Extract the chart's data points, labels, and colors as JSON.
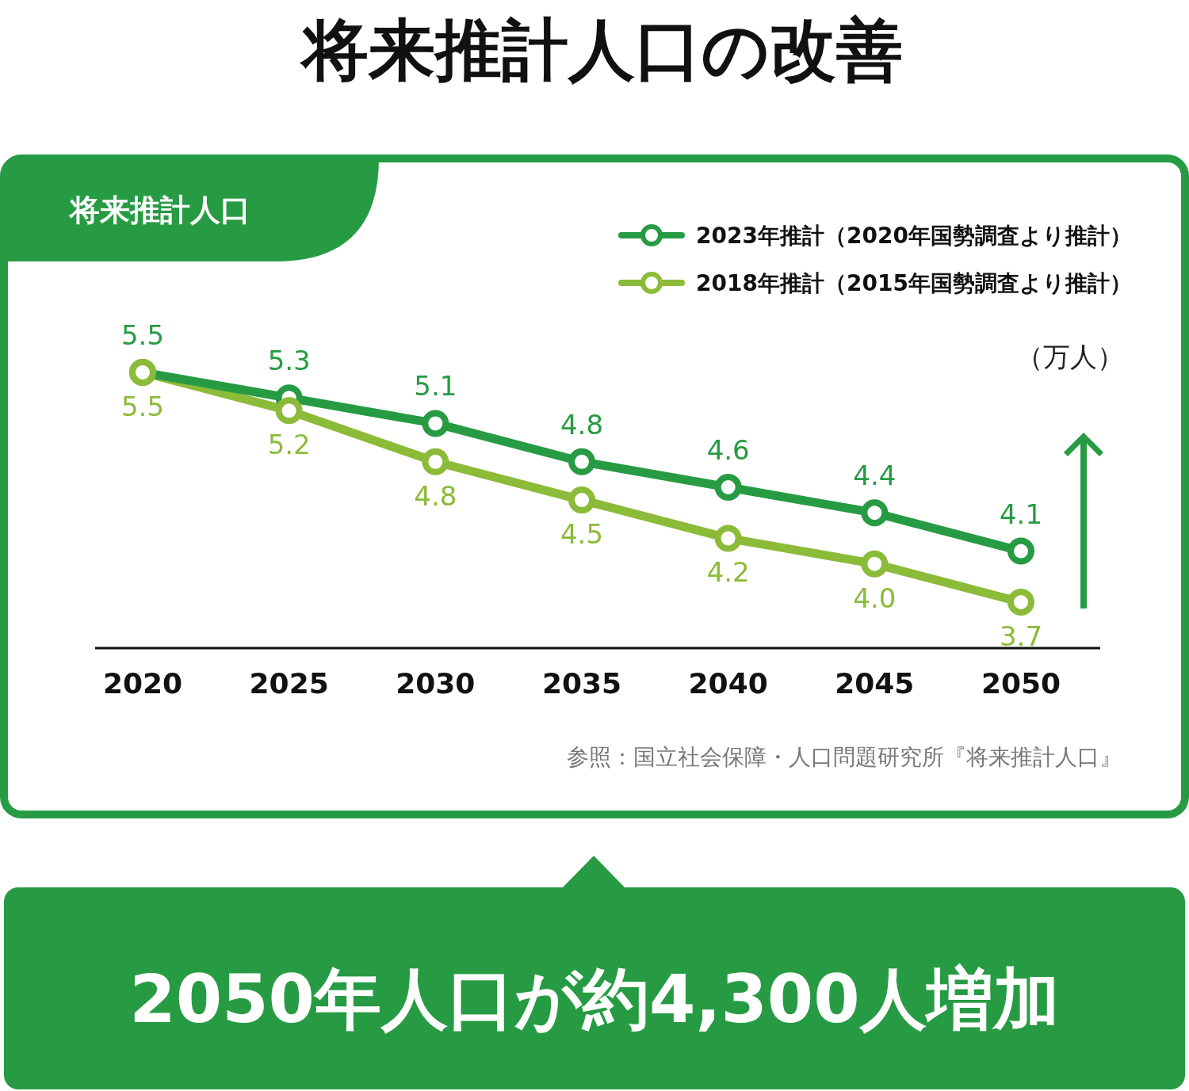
{
  "chart_data": {
    "type": "line",
    "title": "将来推計人口の改善",
    "subtitle": "将来推計人口",
    "ylabel": "（万人）",
    "categories": [
      "2020",
      "2025",
      "2030",
      "2035",
      "2040",
      "2045",
      "2050"
    ],
    "series": [
      {
        "name": "2023年推計（2020年国勢調査より推計）",
        "color": "#279b43",
        "values": [
          5.5,
          5.3,
          5.1,
          4.8,
          4.6,
          4.4,
          4.1
        ],
        "value_labels": [
          "5.5",
          "5.3",
          "5.1",
          "4.8",
          "4.6",
          "4.4",
          "4.1"
        ]
      },
      {
        "name": "2018年推計（2015年国勢調査より推計）",
        "color": "#8cbb3a",
        "values": [
          5.5,
          5.2,
          4.8,
          4.5,
          4.2,
          4.0,
          3.7
        ],
        "value_labels": [
          "5.5",
          "5.2",
          "4.8",
          "4.5",
          "4.2",
          "4.0",
          "3.7"
        ]
      }
    ],
    "legend": "top right",
    "marker": "circle",
    "line_style": "solid",
    "annotations": [
      "参照：国立社会保障・人口問題研究所『将来推計人口』",
      "2050年人口が約4,300人増加"
    ]
  }
}
